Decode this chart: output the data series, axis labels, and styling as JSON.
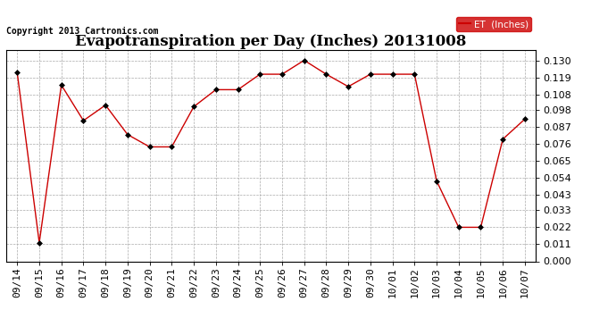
{
  "title": "Evapotranspiration per Day (Inches) 20131008",
  "copyright": "Copyright 2013 Cartronics.com",
  "legend_label": "ET  (Inches)",
  "dates": [
    "09/14",
    "09/15",
    "09/16",
    "09/17",
    "09/18",
    "09/19",
    "09/20",
    "09/21",
    "09/22",
    "09/23",
    "09/24",
    "09/25",
    "09/26",
    "09/27",
    "09/28",
    "09/29",
    "09/30",
    "10/01",
    "10/02",
    "10/03",
    "10/04",
    "10/05",
    "10/06",
    "10/07"
  ],
  "values": [
    0.122,
    0.012,
    0.114,
    0.091,
    0.101,
    0.082,
    0.074,
    0.074,
    0.1,
    0.111,
    0.111,
    0.121,
    0.121,
    0.13,
    0.121,
    0.113,
    0.121,
    0.121,
    0.121,
    0.052,
    0.022,
    0.022,
    0.079,
    0.092
  ],
  "line_color": "#cc0000",
  "marker_color": "#000000",
  "background_color": "#ffffff",
  "grid_color": "#aaaaaa",
  "ylim": [
    0.0,
    0.1365
  ],
  "yticks": [
    0.0,
    0.011,
    0.022,
    0.033,
    0.043,
    0.054,
    0.065,
    0.076,
    0.087,
    0.098,
    0.108,
    0.119,
    0.13
  ],
  "title_fontsize": 12,
  "tick_fontsize": 8,
  "copyright_fontsize": 7,
  "legend_bg": "#cc0000",
  "legend_fg": "#ffffff",
  "fig_width": 6.9,
  "fig_height": 3.75,
  "fig_dpi": 100
}
